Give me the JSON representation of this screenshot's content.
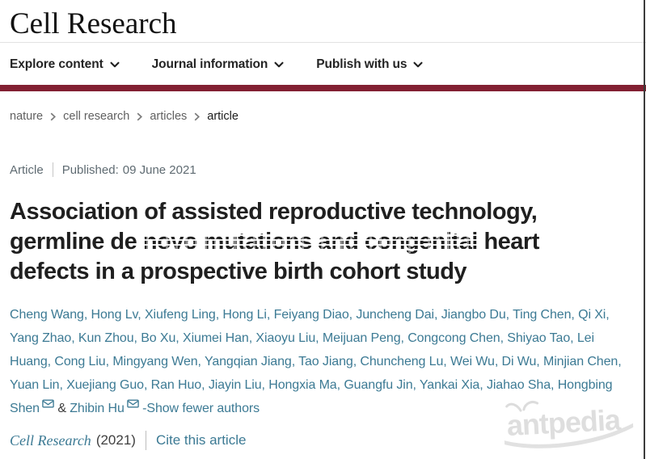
{
  "masthead": {
    "journal_name": "Cell Research"
  },
  "nav": {
    "items": [
      {
        "label": "Explore content"
      },
      {
        "label": "Journal information"
      },
      {
        "label": "Publish with us"
      }
    ]
  },
  "breadcrumb": {
    "items": [
      "nature",
      "cell research",
      "articles",
      "article"
    ]
  },
  "meta": {
    "article_type": "Article",
    "published_label": "Published:",
    "published_date": "09 June 2021"
  },
  "title": {
    "full": "Association of assisted reproductive technology, germline de novo mutations and congenital heart defects in a prospective birth cohort study",
    "line1": "Association of assisted reproductive technology,",
    "line2_pre": "germline de ",
    "line2_smudged": "novo mutations and congenital",
    "line2_post": " heart",
    "line3": "defects in a prospective birth cohort study"
  },
  "authors": {
    "names": [
      {
        "name": "Cheng Wang"
      },
      {
        "name": "Hong Lv"
      },
      {
        "name": "Xiufeng Ling"
      },
      {
        "name": "Hong Li"
      },
      {
        "name": "Feiyang Diao"
      },
      {
        "name": "Juncheng Dai"
      },
      {
        "name": "Jiangbo Du"
      },
      {
        "name": "Ting Chen"
      },
      {
        "name": "Qi Xi"
      },
      {
        "name": "Yang Zhao"
      },
      {
        "name": "Kun Zhou"
      },
      {
        "name": "Bo Xu"
      },
      {
        "name": "Xiumei Han"
      },
      {
        "name": "Xiaoyu Liu"
      },
      {
        "name": "Meijuan Peng"
      },
      {
        "name": "Congcong Chen"
      },
      {
        "name": "Shiyao Tao"
      },
      {
        "name": "Lei Huang"
      },
      {
        "name": "Cong Liu"
      },
      {
        "name": "Mingyang Wen"
      },
      {
        "name": "Yangqian Jiang"
      },
      {
        "name": "Tao Jiang"
      },
      {
        "name": "Chuncheng Lu"
      },
      {
        "name": "Wei Wu"
      },
      {
        "name": "Di Wu"
      },
      {
        "name": "Minjian Chen"
      },
      {
        "name": "Yuan Lin"
      },
      {
        "name": "Xuejiang Guo"
      },
      {
        "name": "Ran Huo"
      },
      {
        "name": "Jiayin Liu"
      },
      {
        "name": "Hongxia Ma"
      },
      {
        "name": "Guangfu Jin"
      },
      {
        "name": "Yankai Xia"
      },
      {
        "name": "Jiahao Sha"
      },
      {
        "name": "Hongbing Shen",
        "corresponding": true
      },
      {
        "name": "Zhibin Hu",
        "corresponding": true
      }
    ],
    "ampersand": "&",
    "show_fewer_label": "-Show fewer authors"
  },
  "citation": {
    "journal": "Cell Research",
    "year": "(2021)",
    "cite_link": "Cite this article"
  },
  "watermark": {
    "text": "antpedia"
  },
  "colors": {
    "brand_bar": "#822032",
    "link_teal": "#3c7a94",
    "heading_text": "#1f1f1f",
    "muted_text": "#606060",
    "watermark_gray": "#d9d9d9"
  },
  "icons": {
    "chevron_down": "⌄",
    "chevron_right": "›",
    "envelope": "✉"
  }
}
